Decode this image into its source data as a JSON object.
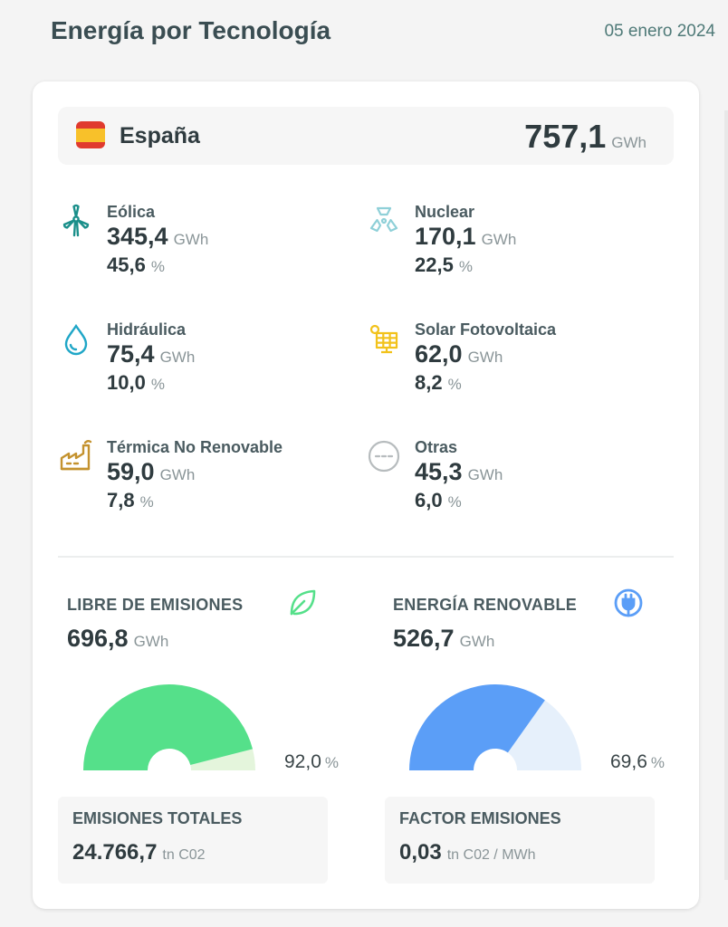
{
  "header": {
    "title": "Energía por Tecnología",
    "date": "05 enero 2024"
  },
  "country": {
    "name": "España",
    "total_value": "757,1",
    "total_unit": "GWh"
  },
  "technologies": [
    {
      "name": "Eólica",
      "value": "345,4",
      "unit": "GWh",
      "percent": "45,6",
      "percent_unit": "%",
      "icon": "wind-turbine-icon",
      "color": "#1a8f8a"
    },
    {
      "name": "Nuclear",
      "value": "170,1",
      "unit": "GWh",
      "percent": "22,5",
      "percent_unit": "%",
      "icon": "nuclear-icon",
      "color": "#8fd0d8"
    },
    {
      "name": "Hidráulica",
      "value": "75,4",
      "unit": "GWh",
      "percent": "10,0",
      "percent_unit": "%",
      "icon": "water-drop-icon",
      "color": "#1fa6c7"
    },
    {
      "name": "Solar Fotovoltaica",
      "value": "62,0",
      "unit": "GWh",
      "percent": "8,2",
      "percent_unit": "%",
      "icon": "solar-panel-icon",
      "color": "#f2c21b"
    },
    {
      "name": "Térmica No Renovable",
      "value": "59,0",
      "unit": "GWh",
      "percent": "7,8",
      "percent_unit": "%",
      "icon": "factory-icon",
      "color": "#c4922e"
    },
    {
      "name": "Otras",
      "value": "45,3",
      "unit": "GWh",
      "percent": "6,0",
      "percent_unit": "%",
      "icon": "other-icon",
      "color": "#b7bcbe"
    }
  ],
  "emission_free": {
    "title": "LIBRE DE EMISIONES",
    "value": "696,8",
    "unit": "GWh",
    "percent": "92,0",
    "percent_unit": "%",
    "fraction": 0.92,
    "icon": "leaf-icon",
    "color": "#55e08a",
    "track_color": "#e4f5dc"
  },
  "renewable": {
    "title": "ENERGÍA RENOVABLE",
    "value": "526,7",
    "unit": "GWh",
    "percent": "69,6",
    "percent_unit": "%",
    "fraction": 0.696,
    "icon": "plug-icon",
    "color": "#5b9ef7",
    "track_color": "#e6f0fb"
  },
  "total_emissions": {
    "title": "EMISIONES TOTALES",
    "value": "24.766,7",
    "unit": "tn C02"
  },
  "emission_factor": {
    "title": "FACTOR EMISIONES",
    "value": "0,03",
    "unit": "tn C02 / MWh"
  }
}
